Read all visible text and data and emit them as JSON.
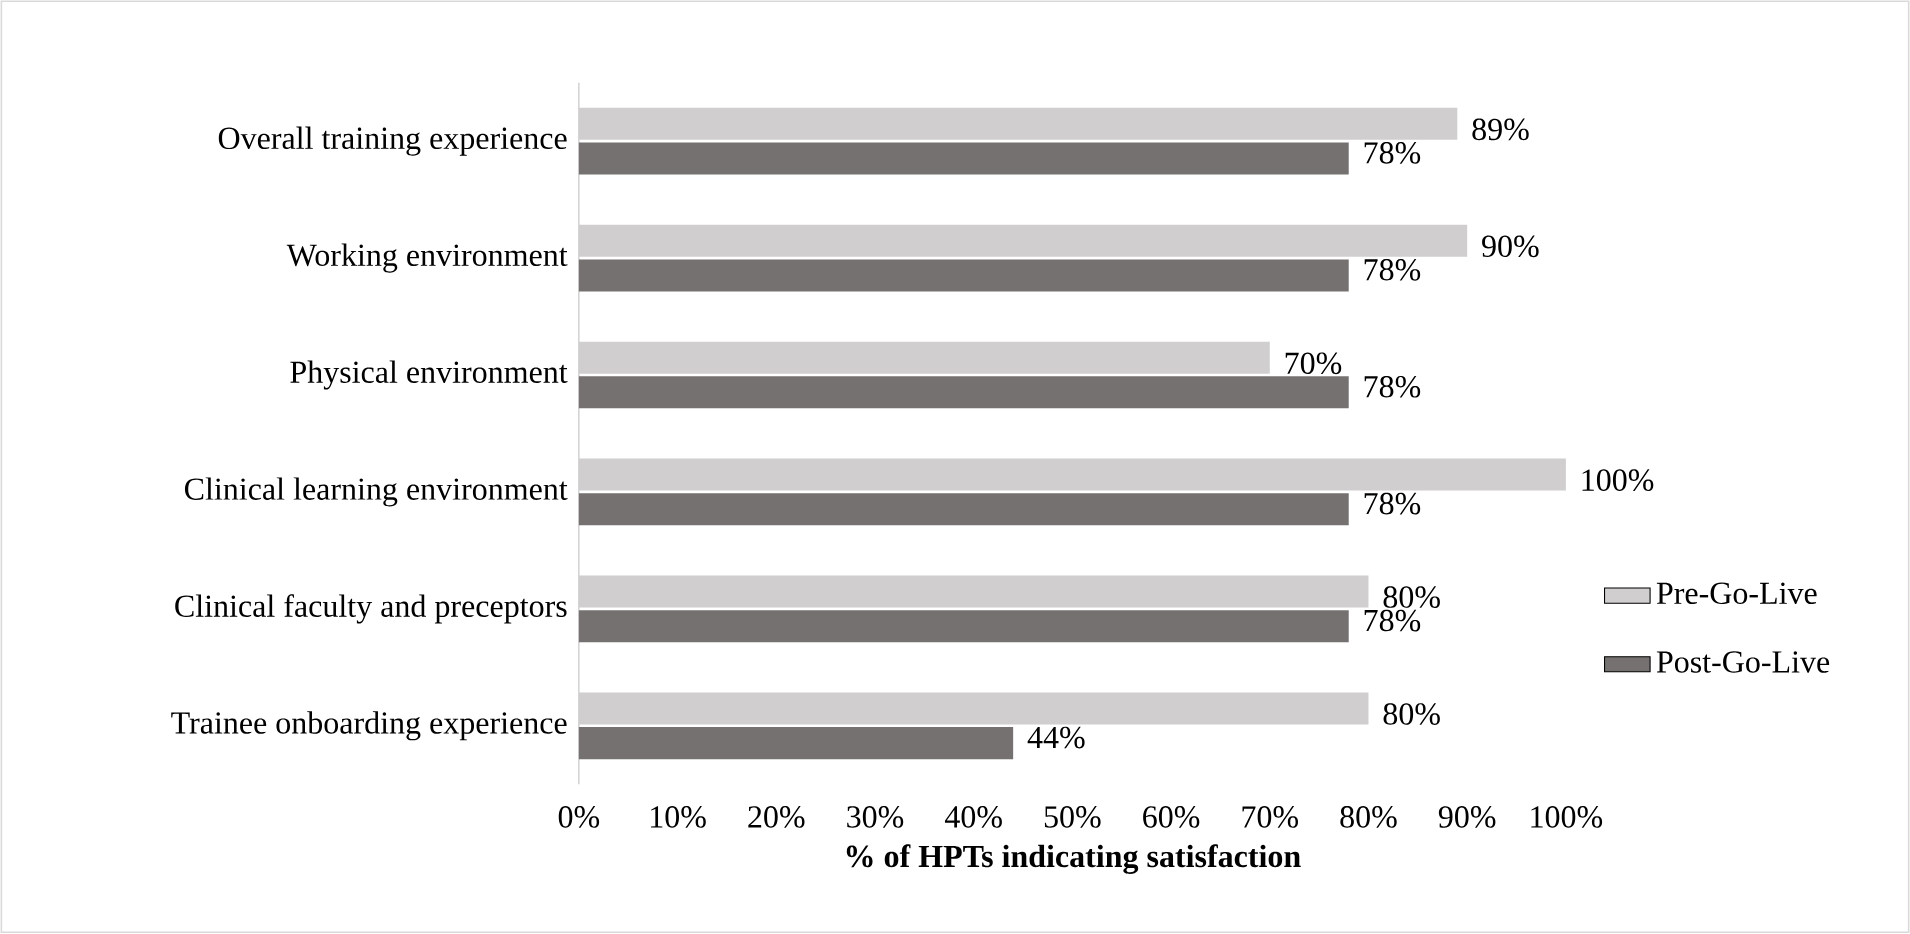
{
  "chart_data": {
    "type": "bar",
    "orientation": "horizontal",
    "xlabel": "% of HPTs indicating satisfaction",
    "categories": [
      "Overall training experience",
      "Working environment",
      "Physical environment",
      "Clinical learning environment",
      "Clinical faculty and preceptors",
      "Trainee onboarding experience"
    ],
    "series": [
      {
        "name": "Pre-Go-Live",
        "color": "#d0cece",
        "values": [
          89,
          90,
          70,
          100,
          80,
          80
        ],
        "value_labels": [
          "89%",
          "90%",
          "70%",
          "100%",
          "80%",
          "80%"
        ]
      },
      {
        "name": "Post-Go-Live",
        "color": "#767171",
        "values": [
          78,
          78,
          78,
          78,
          78,
          44
        ],
        "value_labels": [
          "78%",
          "78%",
          "78%",
          "78%",
          "78%",
          "44%"
        ]
      }
    ],
    "xlim": [
      0,
      100
    ],
    "xticks": [
      {
        "value": 0,
        "label": "0%"
      },
      {
        "value": 10,
        "label": "10%"
      },
      {
        "value": 20,
        "label": "20%"
      },
      {
        "value": 30,
        "label": "30%"
      },
      {
        "value": 40,
        "label": "40%"
      },
      {
        "value": 50,
        "label": "50%"
      },
      {
        "value": 60,
        "label": "60%"
      },
      {
        "value": 70,
        "label": "70%"
      },
      {
        "value": 80,
        "label": "80%"
      },
      {
        "value": 90,
        "label": "90%"
      },
      {
        "value": 100,
        "label": "100%"
      }
    ],
    "grid": false,
    "legend": "right"
  }
}
